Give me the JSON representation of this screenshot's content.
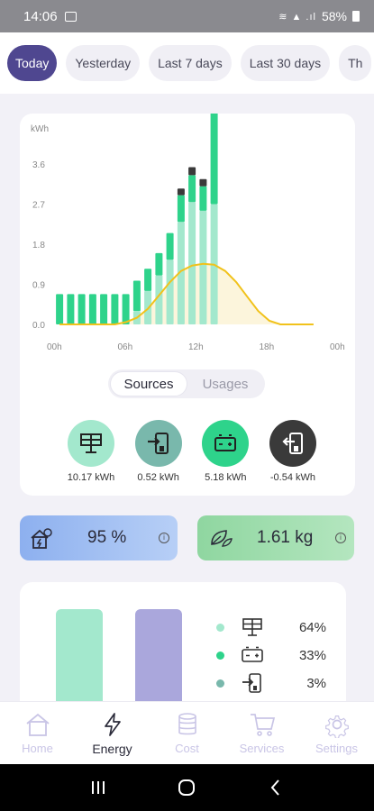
{
  "status": {
    "time": "14:06",
    "battery": "58%"
  },
  "tabs": [
    {
      "label": "Today",
      "active": true
    },
    {
      "label": "Yesterday"
    },
    {
      "label": "Last 7 days"
    },
    {
      "label": "Last 30 days"
    },
    {
      "label": "Th"
    }
  ],
  "chart": {
    "unit": "kWh"
  },
  "chart_data": {
    "type": "bar",
    "ylabel": "kWh",
    "ylim": [
      0,
      3.6
    ],
    "yticks": [
      "3.6",
      "2.7",
      "1.8",
      "0.9",
      "0.0"
    ],
    "xticks": [
      "00h",
      "06h",
      "12h",
      "18h",
      "00h"
    ],
    "series": [
      {
        "key": "solar",
        "color": "#a3e8cd",
        "values": [
          0,
          0,
          0,
          0,
          0,
          0,
          0,
          0.3,
          0.75,
          1.1,
          1.45,
          2.3,
          2.75,
          2.55,
          2.7,
          0,
          0,
          0,
          0,
          0,
          0,
          0,
          0,
          0
        ]
      },
      {
        "key": "battery",
        "color": "#2ed38b",
        "values": [
          0.68,
          0.68,
          0.68,
          0.68,
          0.68,
          0.68,
          0.68,
          0.68,
          0.5,
          0.5,
          0.6,
          0.6,
          0.6,
          0.55,
          3.0,
          0,
          0,
          0,
          0,
          0,
          0,
          0,
          0,
          0
        ]
      },
      {
        "key": "grid",
        "color": "#3a3a3a",
        "values": [
          0,
          0,
          0,
          0,
          0,
          0,
          0,
          0,
          0,
          0,
          0,
          0.15,
          0.18,
          0.16,
          0.18,
          0,
          0,
          0,
          0,
          0,
          0,
          0,
          0,
          0
        ]
      }
    ],
    "consumption_line": {
      "color": "#f1c21b",
      "values": [
        0,
        0,
        0,
        0,
        0,
        0,
        0.05,
        0.15,
        0.35,
        0.65,
        0.95,
        1.2,
        1.32,
        1.36,
        1.34,
        1.2,
        0.95,
        0.62,
        0.3,
        0.08,
        0,
        0,
        0,
        0
      ]
    }
  },
  "toggle": {
    "sources": "Sources",
    "usages": "Usages"
  },
  "sources": [
    {
      "icon": "solar-panel-icon",
      "value": "10.17 kWh",
      "bg": "#a3e8cd"
    },
    {
      "icon": "grid-import-icon",
      "value": "0.52 kWh",
      "bg": "#79b8ac"
    },
    {
      "icon": "battery-icon",
      "value": "5.18 kWh",
      "bg": "#2ed38b"
    },
    {
      "icon": "grid-export-icon",
      "value": "-0.54 kWh",
      "bg": "#3a3a3a"
    }
  ],
  "kpis": {
    "autonomy": "95 %",
    "co2": "1.61 kg"
  },
  "share": [
    {
      "icon": "solar-panel-icon",
      "pct": "64%",
      "dot": "#a3e8cd"
    },
    {
      "icon": "battery-icon",
      "pct": "33%",
      "dot": "#2ed38b"
    },
    {
      "icon": "grid-import-icon",
      "pct": "3%",
      "dot": "#79b8ac"
    }
  ],
  "nav": [
    {
      "label": "Home",
      "icon": "home-icon"
    },
    {
      "label": "Energy",
      "icon": "bolt-icon",
      "active": true
    },
    {
      "label": "Cost",
      "icon": "coins-icon"
    },
    {
      "label": "Services",
      "icon": "cart-icon"
    },
    {
      "label": "Settings",
      "icon": "gear-icon"
    }
  ]
}
